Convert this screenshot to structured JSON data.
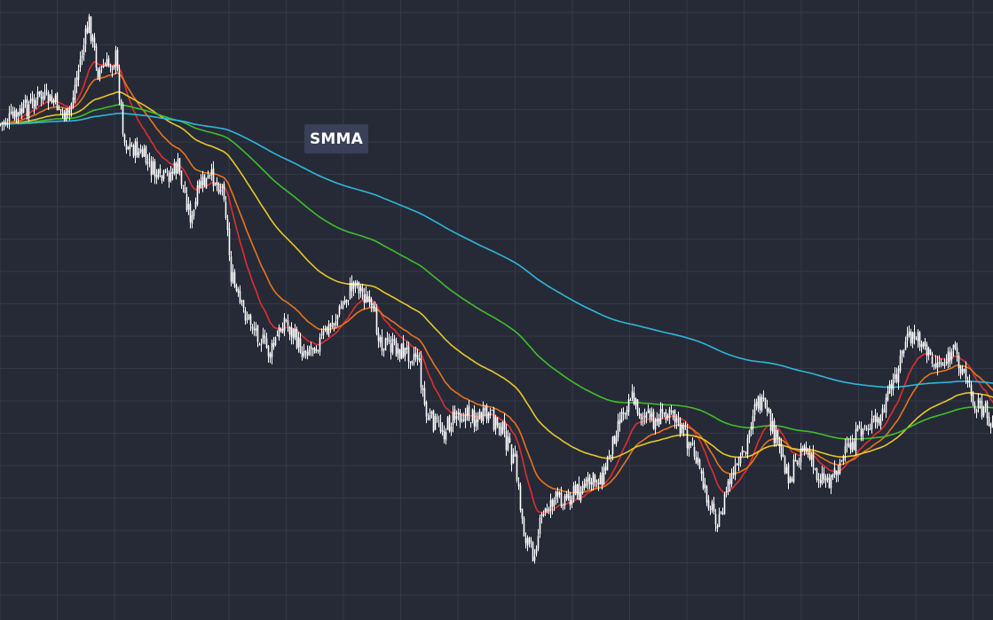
{
  "chart_data": {
    "type": "line",
    "indicator_label": "SMMA",
    "grid": true,
    "x": {
      "start": 0,
      "end": 560,
      "step": 1
    },
    "ylim": [
      0,
      699
    ],
    "price_path": [
      [
        0,
        140
      ],
      [
        10,
        130
      ],
      [
        22,
        108
      ],
      [
        32,
        118
      ],
      [
        38,
        135
      ],
      [
        45,
        68
      ],
      [
        50,
        25
      ],
      [
        55,
        80
      ],
      [
        60,
        75
      ],
      [
        65,
        65
      ],
      [
        70,
        160
      ],
      [
        80,
        175
      ],
      [
        90,
        205
      ],
      [
        100,
        188
      ],
      [
        108,
        250
      ],
      [
        112,
        210
      ],
      [
        120,
        200
      ],
      [
        126,
        215
      ],
      [
        130,
        310
      ],
      [
        135,
        345
      ],
      [
        145,
        375
      ],
      [
        152,
        400
      ],
      [
        160,
        360
      ],
      [
        170,
        395
      ],
      [
        180,
        385
      ],
      [
        190,
        355
      ],
      [
        200,
        315
      ],
      [
        208,
        345
      ],
      [
        215,
        385
      ],
      [
        225,
        395
      ],
      [
        235,
        400
      ],
      [
        240,
        470
      ],
      [
        250,
        485
      ],
      [
        258,
        465
      ],
      [
        265,
        470
      ],
      [
        275,
        470
      ],
      [
        282,
        480
      ],
      [
        290,
        525
      ],
      [
        295,
        600
      ],
      [
        300,
        625
      ],
      [
        305,
        585
      ],
      [
        310,
        565
      ],
      [
        320,
        560
      ],
      [
        330,
        548
      ],
      [
        340,
        535
      ],
      [
        348,
        475
      ],
      [
        355,
        445
      ],
      [
        362,
        470
      ],
      [
        370,
        475
      ],
      [
        378,
        455
      ],
      [
        382,
        480
      ],
      [
        390,
        505
      ],
      [
        397,
        555
      ],
      [
        405,
        590
      ],
      [
        410,
        545
      ],
      [
        415,
        530
      ],
      [
        420,
        510
      ],
      [
        425,
        450
      ],
      [
        430,
        460
      ],
      [
        437,
        495
      ],
      [
        445,
        540
      ],
      [
        452,
        500
      ],
      [
        460,
        535
      ],
      [
        467,
        540
      ],
      [
        472,
        525
      ],
      [
        480,
        500
      ],
      [
        487,
        480
      ],
      [
        495,
        475
      ],
      [
        500,
        450
      ],
      [
        505,
        420
      ],
      [
        510,
        385
      ],
      [
        515,
        380
      ],
      [
        520,
        385
      ],
      [
        525,
        410
      ],
      [
        532,
        408
      ],
      [
        538,
        398
      ],
      [
        542,
        415
      ],
      [
        548,
        450
      ],
      [
        553,
        460
      ],
      [
        560,
        480
      ]
    ],
    "series": [
      {
        "name": "",
        "color": "#e02e2e",
        "period": 10
      },
      {
        "name": "",
        "color": "#e8741c",
        "period": 20
      },
      {
        "name": "",
        "color": "#e6c82a",
        "period": 50
      },
      {
        "name": "",
        "color": "#3fbf2a",
        "period": 100
      },
      {
        "name": "",
        "color": "#2fb7dc",
        "period": 200
      }
    ],
    "candle_color": "#ffffff",
    "grid_color": "#343949",
    "background": "#262a37"
  }
}
